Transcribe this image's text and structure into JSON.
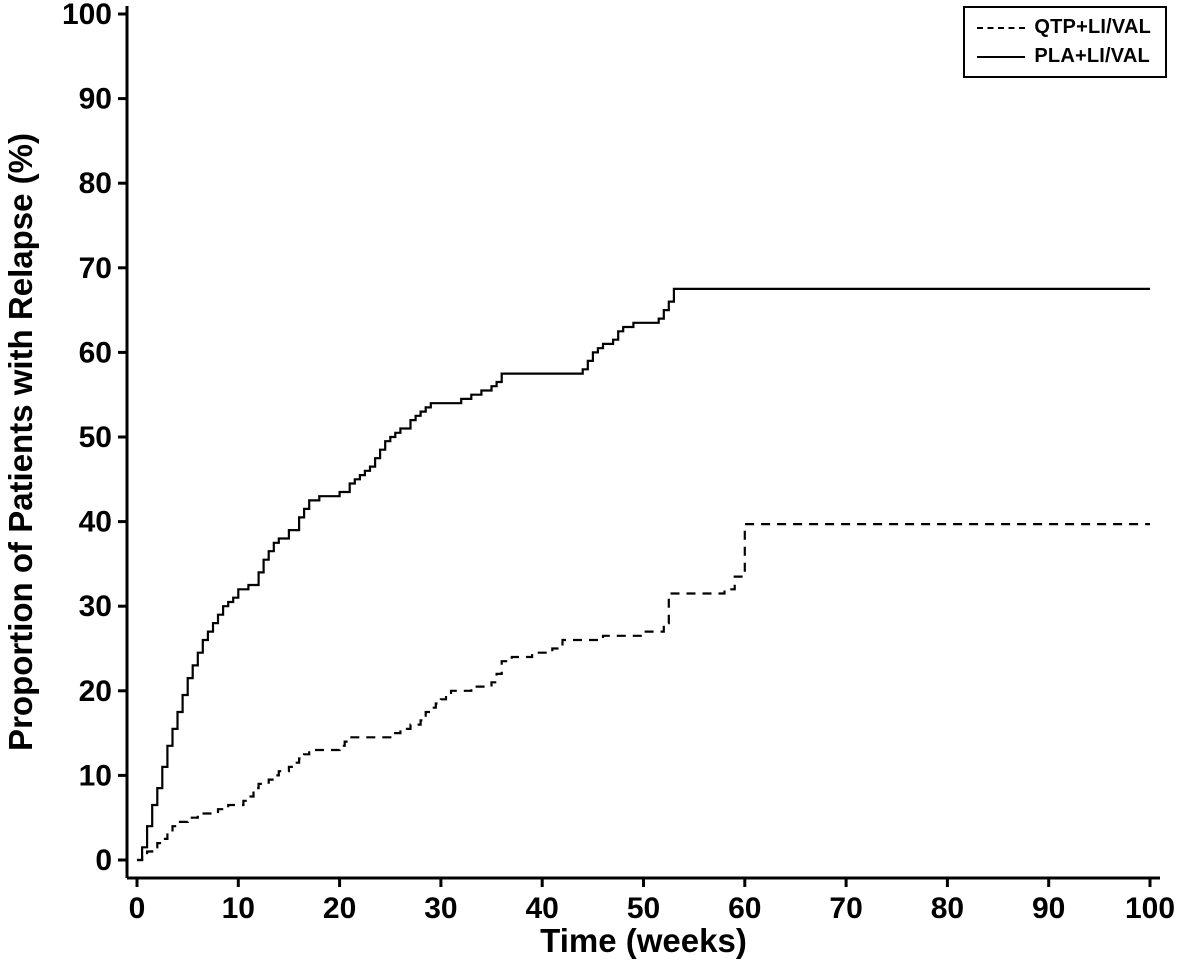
{
  "chart_data": {
    "type": "line",
    "subtype": "step",
    "title": "",
    "xlabel": "Time (weeks)",
    "ylabel": "Proportion of Patients with Relapse (%)",
    "xlim": [
      0,
      100
    ],
    "ylim": [
      0,
      100
    ],
    "xticks": [
      0,
      10,
      20,
      30,
      40,
      50,
      60,
      70,
      80,
      90,
      100
    ],
    "yticks": [
      0,
      10,
      20,
      30,
      40,
      50,
      60,
      70,
      80,
      90,
      100
    ],
    "grid": false,
    "background_color": "#ffffff",
    "axis_color": "#000000",
    "legend_position": "top-right",
    "series": [
      {
        "name": "QTP+LI/VAL",
        "style": "dashed",
        "color": "#000000",
        "points": [
          [
            0,
            0
          ],
          [
            0.5,
            0.5
          ],
          [
            1,
            1
          ],
          [
            1.5,
            1.5
          ],
          [
            2,
            2
          ],
          [
            2.5,
            2.5
          ],
          [
            3,
            3.5
          ],
          [
            3.5,
            4
          ],
          [
            4,
            4.5
          ],
          [
            5,
            5
          ],
          [
            6,
            5.5
          ],
          [
            8,
            6
          ],
          [
            9,
            6.5
          ],
          [
            10.5,
            7
          ],
          [
            11,
            7.5
          ],
          [
            11.5,
            8.5
          ],
          [
            12,
            9
          ],
          [
            13,
            9.5
          ],
          [
            13.5,
            10
          ],
          [
            14,
            10.5
          ],
          [
            15,
            11
          ],
          [
            15.5,
            11.5
          ],
          [
            16,
            12
          ],
          [
            16.5,
            12.5
          ],
          [
            17,
            13
          ],
          [
            20,
            13.5
          ],
          [
            20.5,
            14
          ],
          [
            21,
            14.5
          ],
          [
            25,
            15
          ],
          [
            26,
            15.5
          ],
          [
            27,
            16
          ],
          [
            28,
            16.5
          ],
          [
            28.5,
            17.5
          ],
          [
            29,
            18
          ],
          [
            29.5,
            18.5
          ],
          [
            30,
            19
          ],
          [
            30.5,
            19.5
          ],
          [
            31,
            20
          ],
          [
            33,
            20.5
          ],
          [
            35,
            21
          ],
          [
            35.5,
            22
          ],
          [
            36,
            23.5
          ],
          [
            37,
            24
          ],
          [
            39,
            24.5
          ],
          [
            41,
            25
          ],
          [
            42,
            26
          ],
          [
            46,
            26.5
          ],
          [
            50,
            27
          ],
          [
            52,
            28
          ],
          [
            52.5,
            31.5
          ],
          [
            58,
            32
          ],
          [
            59,
            33.5
          ],
          [
            60,
            39.7
          ],
          [
            100,
            39.7
          ]
        ]
      },
      {
        "name": "PLA+LI/VAL",
        "style": "solid",
        "color": "#000000",
        "points": [
          [
            0,
            0
          ],
          [
            0.5,
            1.5
          ],
          [
            1,
            4
          ],
          [
            1.5,
            6.5
          ],
          [
            2,
            8.5
          ],
          [
            2.5,
            11
          ],
          [
            3,
            13.5
          ],
          [
            3.5,
            15.5
          ],
          [
            4,
            17.5
          ],
          [
            4.5,
            19.5
          ],
          [
            5,
            21.5
          ],
          [
            5.5,
            23
          ],
          [
            6,
            24.5
          ],
          [
            6.5,
            26
          ],
          [
            7,
            27
          ],
          [
            7.5,
            28
          ],
          [
            8,
            29
          ],
          [
            8.5,
            30
          ],
          [
            9,
            30.5
          ],
          [
            9.5,
            31
          ],
          [
            10,
            32
          ],
          [
            11,
            32.5
          ],
          [
            12,
            34
          ],
          [
            12.5,
            35.5
          ],
          [
            13,
            36.5
          ],
          [
            13.5,
            37.5
          ],
          [
            14,
            38
          ],
          [
            15,
            39
          ],
          [
            16,
            40.5
          ],
          [
            16.5,
            41.5
          ],
          [
            17,
            42.5
          ],
          [
            18,
            43
          ],
          [
            20,
            43.5
          ],
          [
            21,
            44.5
          ],
          [
            21.5,
            45
          ],
          [
            22,
            45.5
          ],
          [
            22.5,
            46
          ],
          [
            23,
            46.5
          ],
          [
            23.5,
            47.5
          ],
          [
            24,
            48.5
          ],
          [
            24.5,
            49.5
          ],
          [
            25,
            50
          ],
          [
            25.5,
            50.5
          ],
          [
            26,
            51
          ],
          [
            27,
            52
          ],
          [
            27.5,
            52.5
          ],
          [
            28,
            53
          ],
          [
            28.5,
            53.5
          ],
          [
            29,
            54
          ],
          [
            32,
            54.5
          ],
          [
            33,
            55
          ],
          [
            34,
            55.5
          ],
          [
            35,
            56
          ],
          [
            35.5,
            56.5
          ],
          [
            36,
            57.5
          ],
          [
            44,
            58
          ],
          [
            44.5,
            59
          ],
          [
            45,
            60
          ],
          [
            45.5,
            60.5
          ],
          [
            46,
            61
          ],
          [
            47,
            61.5
          ],
          [
            47.5,
            62.5
          ],
          [
            48,
            63
          ],
          [
            49,
            63.5
          ],
          [
            51.5,
            64
          ],
          [
            52,
            65
          ],
          [
            52.5,
            66
          ],
          [
            53,
            67.5
          ],
          [
            100,
            67.5
          ]
        ]
      }
    ]
  }
}
